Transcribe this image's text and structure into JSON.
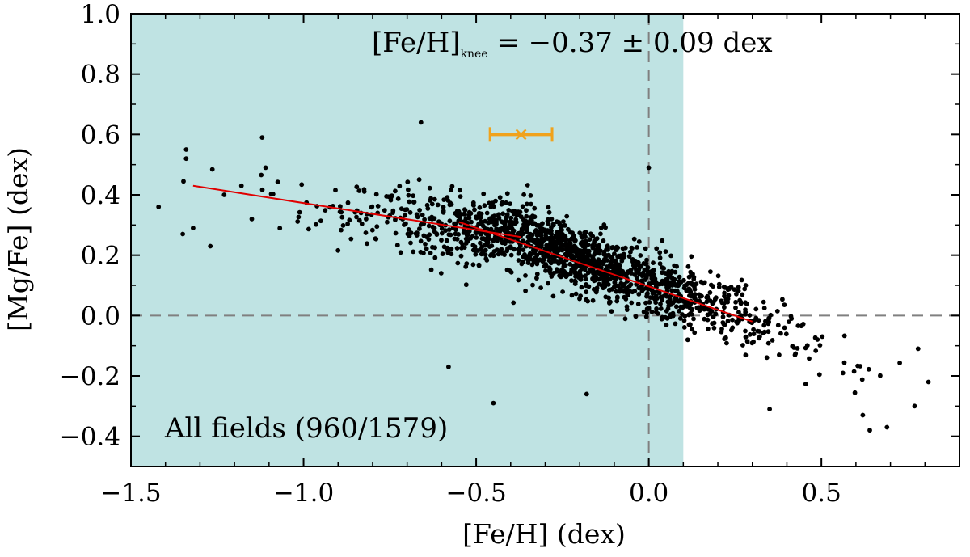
{
  "chart_data": {
    "type": "scatter",
    "xlabel": "[Fe/H] (dex)",
    "ylabel": "[Mg/Fe] (dex)",
    "xlim": [
      -1.5,
      0.9
    ],
    "ylim": [
      -0.5,
      1.0
    ],
    "x_ticks": [
      -1.5,
      -1.0,
      -0.5,
      0.0,
      0.5
    ],
    "y_ticks": [
      -0.4,
      -0.2,
      0.0,
      0.2,
      0.4,
      0.6,
      0.8,
      1.0
    ],
    "x_tick_labels": [
      "−1.5",
      "−1.0",
      "−0.5",
      "0.0",
      "0.5"
    ],
    "y_tick_labels": [
      "−0.4",
      "−0.2",
      "0.0",
      "0.2",
      "0.4",
      "0.6",
      "0.8",
      "1.0"
    ],
    "shaded_region": {
      "x_from": -1.5,
      "x_to": 0.1,
      "color": "#bfe3e3"
    },
    "reference_lines": [
      {
        "axis": "x",
        "value": 0.0,
        "style": "dashed",
        "color": "#808080"
      },
      {
        "axis": "y",
        "value": 0.0,
        "style": "dashed",
        "color": "#808080"
      }
    ],
    "annotation": {
      "main": "[Fe/H]",
      "subscript": "knee",
      "rest": " = −0.37 ± 0.09 dex"
    },
    "panel_label": "All fields (960/1579)",
    "knee_point": {
      "x": -0.37,
      "y": 0.6,
      "xerr": 0.09,
      "color": "#f0a21c"
    },
    "fit_segments": [
      {
        "x": [
          -1.32,
          -0.37
        ],
        "y": [
          0.43,
          0.26
        ],
        "color": "#e00000"
      },
      {
        "x": [
          -0.55,
          0.3
        ],
        "y": [
          0.31,
          -0.02
        ],
        "color": "#e00000"
      }
    ],
    "points": {
      "n": 1579,
      "marker_color": "#000000",
      "trend": {
        "knee": -0.37,
        "y_at_knee": 0.26,
        "slope_low": -0.18,
        "slope_high": -0.42
      },
      "outliers": [
        [
          -1.42,
          0.36
        ],
        [
          -1.34,
          0.55
        ],
        [
          -1.34,
          0.52
        ],
        [
          -1.35,
          0.27
        ],
        [
          -1.32,
          0.29
        ],
        [
          -1.27,
          0.23
        ],
        [
          -1.23,
          0.4
        ],
        [
          -1.18,
          0.43
        ],
        [
          -1.12,
          0.59
        ],
        [
          -1.11,
          0.49
        ],
        [
          -1.15,
          0.32
        ],
        [
          -0.66,
          0.64
        ],
        [
          -0.58,
          -0.17
        ],
        [
          -0.45,
          -0.29
        ],
        [
          -0.18,
          -0.26
        ],
        [
          0.0,
          0.49
        ],
        [
          0.35,
          -0.31
        ],
        [
          0.62,
          -0.33
        ],
        [
          0.64,
          -0.38
        ],
        [
          0.69,
          -0.37
        ],
        [
          0.77,
          -0.3
        ],
        [
          0.81,
          -0.22
        ],
        [
          0.78,
          -0.11
        ]
      ]
    }
  }
}
